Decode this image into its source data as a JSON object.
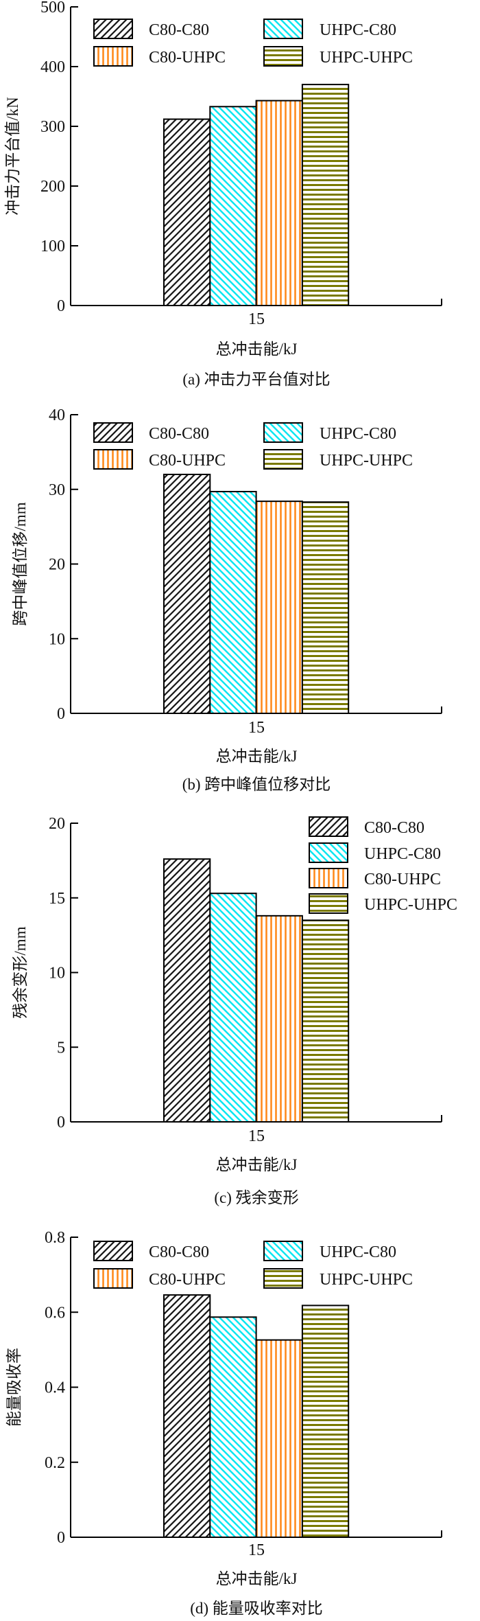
{
  "colors": {
    "C80-C80": "#111111",
    "UHPC-C80": "#00e5f0",
    "C80-UHPC": "#ff8a1c",
    "UHPC-UHPC": "#7a7a00"
  },
  "chart_data": [
    {
      "type": "bar",
      "title": "(a)  冲击力平台值对比",
      "xlabel": "总冲击能/kJ",
      "ylabel": "冲击力平台值/kN",
      "categories": [
        "15"
      ],
      "ylim": [
        0,
        500
      ],
      "yticks": [
        "0",
        "100",
        "200",
        "300",
        "400",
        "500"
      ],
      "legend": "top-left, 2 columns",
      "series": [
        {
          "name": "C80-C80",
          "values": [
            312
          ]
        },
        {
          "name": "UHPC-C80",
          "values": [
            333
          ]
        },
        {
          "name": "C80-UHPC",
          "values": [
            343
          ]
        },
        {
          "name": "UHPC-UHPC",
          "values": [
            370
          ]
        }
      ]
    },
    {
      "type": "bar",
      "title": "(b)  跨中峰值位移对比",
      "xlabel": "总冲击能/kJ",
      "ylabel": "跨中峰值位移/mm",
      "categories": [
        "15"
      ],
      "ylim": [
        0,
        40
      ],
      "yticks": [
        "0",
        "10",
        "20",
        "30",
        "40"
      ],
      "legend": "top-left, 2 columns",
      "series": [
        {
          "name": "C80-C80",
          "values": [
            32.0
          ]
        },
        {
          "name": "UHPC-C80",
          "values": [
            29.7
          ]
        },
        {
          "name": "C80-UHPC",
          "values": [
            28.4
          ]
        },
        {
          "name": "UHPC-UHPC",
          "values": [
            28.3
          ]
        }
      ]
    },
    {
      "type": "bar",
      "title": "(c)  残余变形",
      "xlabel": "总冲击能/kJ",
      "ylabel": "残余变形/mm",
      "categories": [
        "15"
      ],
      "ylim": [
        0,
        20
      ],
      "yticks": [
        "0",
        "5",
        "10",
        "15",
        "20"
      ],
      "legend": "top-right, 1 column",
      "series": [
        {
          "name": "C80-C80",
          "values": [
            17.6
          ]
        },
        {
          "name": "UHPC-C80",
          "values": [
            15.3
          ]
        },
        {
          "name": "C80-UHPC",
          "values": [
            13.8
          ]
        },
        {
          "name": "UHPC-UHPC",
          "values": [
            13.5
          ]
        }
      ]
    },
    {
      "type": "bar",
      "title": "(d)  能量吸收率对比",
      "xlabel": "总冲击能/kJ",
      "ylabel": "能量吸收率",
      "categories": [
        "15"
      ],
      "ylim": [
        0,
        0.8
      ],
      "yticks": [
        "0",
        "0.2",
        "0.4",
        "0.6",
        "0.8"
      ],
      "legend": "top-left, 2 columns",
      "series": [
        {
          "name": "C80-C80",
          "values": [
            0.646
          ]
        },
        {
          "name": "UHPC-C80",
          "values": [
            0.587
          ]
        },
        {
          "name": "C80-UHPC",
          "values": [
            0.526
          ]
        },
        {
          "name": "UHPC-UHPC",
          "values": [
            0.618
          ]
        }
      ]
    }
  ]
}
